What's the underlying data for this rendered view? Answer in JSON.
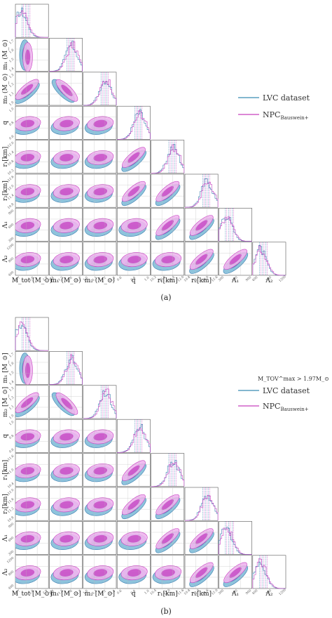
{
  "panels": [
    {
      "caption": "(a)",
      "condition": "",
      "params": [
        "M_tot (M_⊙)",
        "m₁ (M_⊙)",
        "m₂ (M_⊙)",
        "q",
        "r₁[km]",
        "r₂[km]",
        "Λ₁",
        "Λ₂"
      ],
      "row_labels": [
        "m₁ (M_⊙)",
        "m₂ (M_⊙)",
        "q",
        "r₁[km]",
        "r₂[km]",
        "Λ₁",
        "Λ₂"
      ],
      "tick_labels": [
        [
          "2.7",
          "2.8",
          "2.9"
        ],
        [
          "1.4",
          "1.5",
          "1.6",
          "1.7"
        ],
        [
          "1.0",
          "1.1",
          "1.2",
          "1.3"
        ],
        [
          "0.6",
          "0.8",
          "1.0"
        ],
        [
          "10.2",
          "10.8",
          "11.4",
          "12.0"
        ],
        [
          "10.8",
          "11.4",
          "12.0",
          "12.6"
        ],
        [
          "300",
          "600",
          "900"
        ],
        [
          "400",
          "800",
          "1200"
        ]
      ]
    },
    {
      "caption": "(b)",
      "condition": "M_TOV^max > 1.97M_⊙",
      "params": [
        "M_tot [M_⊙]",
        "m₁ [M_⊙]",
        "m₂ [M_⊙]",
        "q",
        "r₁[km]",
        "r₂[km]",
        "Λ₁",
        "Λ₂"
      ],
      "row_labels": [
        "m₁ [M_⊙]",
        "m₂ [M_⊙]",
        "q",
        "r₁[km]",
        "r₂[km]",
        "Λ₁",
        "Λ₂"
      ],
      "tick_labels": [
        [
          "2.7",
          "2.8",
          "2.9"
        ],
        [
          "1.4",
          "1.5",
          "1.6",
          "1.7"
        ],
        [
          "1.0",
          "1.1",
          "1.2",
          "1.3"
        ],
        [
          "0.6",
          "0.8",
          "1.0"
        ],
        [
          "10.4",
          "11.0",
          "11.6"
        ],
        [
          "10.8",
          "11.2",
          "11.6",
          "12.0"
        ],
        [
          "300",
          "600",
          "900"
        ],
        [
          "400",
          "800",
          "1200"
        ]
      ]
    }
  ],
  "legend": {
    "entries": [
      {
        "label": "LVC dataset",
        "subscript": "",
        "color": "#5a9fbf"
      },
      {
        "label": "NPC",
        "subscript": "Bauswein+",
        "color": "#d060c8"
      }
    ]
  },
  "colors": {
    "lvc_fill": "#8ec3dc",
    "lvc_dark": "#3a7fb0",
    "npc_fill": "#f0b6ee",
    "npc_dark": "#c43fc0",
    "frame": "#555555"
  }
}
